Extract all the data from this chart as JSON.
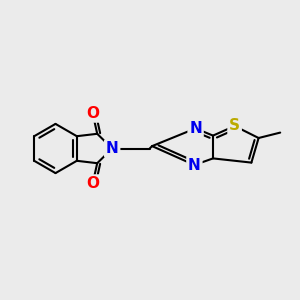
{
  "background_color": "#ebebeb",
  "bond_color": "#000000",
  "bond_width": 1.5,
  "atom_colors": {
    "N": "#0000ee",
    "O": "#ff0000",
    "S": "#bbaa00",
    "C": "#000000"
  },
  "font_size": 10,
  "title": ""
}
